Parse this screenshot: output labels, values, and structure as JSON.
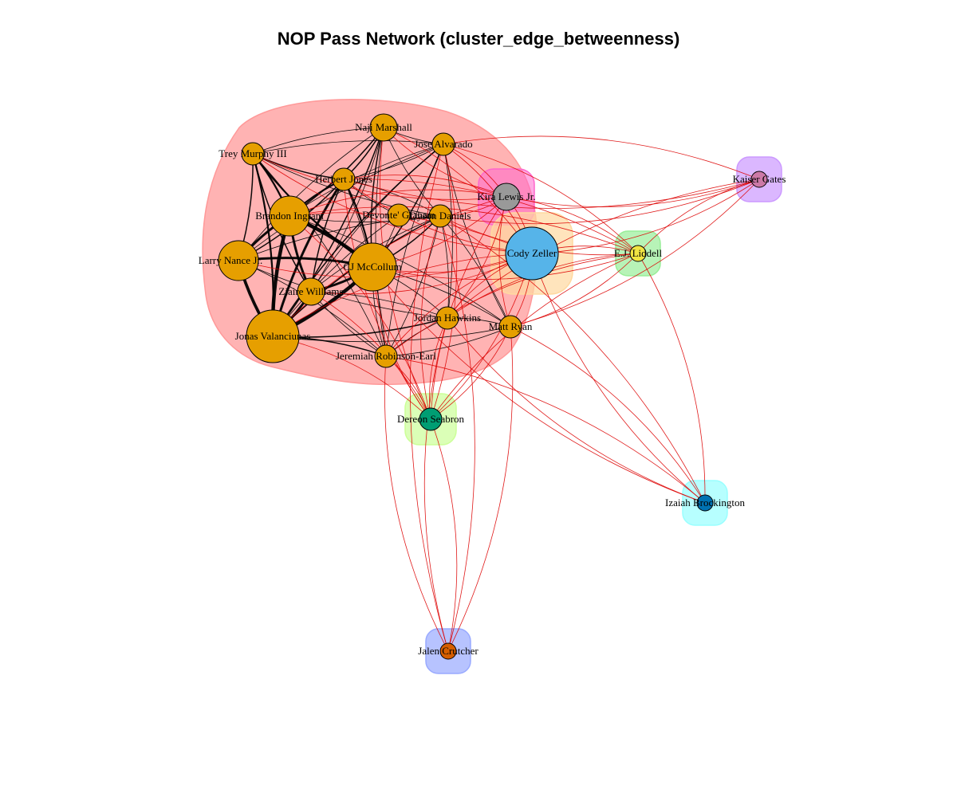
{
  "title": "NOP Pass Network (cluster_edge_betweenness)",
  "colors": {
    "edge_within": "#000000",
    "edge_between": "#dd0000",
    "node_border": "#000000"
  },
  "clusters": [
    {
      "id": "c1",
      "fill": "#ff9999",
      "opacity": 0.75,
      "members": [
        "Naji Marshall",
        "Jose Alvarado",
        "Trey Murphy III",
        "Herbert Jones",
        "Brandon Ingram",
        "Devonte' Graham",
        "Dyson Daniels",
        "Larry Nance Jr.",
        "CJ McCollum",
        "Ziaire Williams",
        "Jonas Valanciunas",
        "Jordan Hawkins",
        "Matt Ryan",
        "Jeremiah Robinson-Earl"
      ]
    },
    {
      "id": "c2",
      "fill": "#ff66cc",
      "opacity": 0.55,
      "members": [
        "Kira Lewis Jr."
      ]
    },
    {
      "id": "c3",
      "fill": "#ffd9a0",
      "opacity": 0.7,
      "members": [
        "Cody Zeller"
      ]
    },
    {
      "id": "c4",
      "fill": "#99ee99",
      "opacity": 0.7,
      "members": [
        "E.J. Liddell"
      ]
    },
    {
      "id": "c5",
      "fill": "#cc99ff",
      "opacity": 0.7,
      "members": [
        "Kaiser Gates"
      ]
    },
    {
      "id": "c6",
      "fill": "#ccff99",
      "opacity": 0.7,
      "members": [
        "Dereon Seabron"
      ]
    },
    {
      "id": "c7",
      "fill": "#99ffff",
      "opacity": 0.7,
      "members": [
        "Izaiah Brockington"
      ]
    },
    {
      "id": "c8",
      "fill": "#99aaff",
      "opacity": 0.7,
      "members": [
        "Jalen Crutcher"
      ]
    }
  ],
  "nodes": [
    {
      "label": "Naji Marshall",
      "color": "#e69f00",
      "size": 3,
      "cluster": "c1"
    },
    {
      "label": "Jose Alvarado",
      "color": "#e69f00",
      "size": 2,
      "cluster": "c1"
    },
    {
      "label": "Trey Murphy III",
      "color": "#e69f00",
      "size": 2,
      "cluster": "c1"
    },
    {
      "label": "Herbert Jones",
      "color": "#e69f00",
      "size": 2,
      "cluster": "c1"
    },
    {
      "label": "Brandon Ingram",
      "color": "#e69f00",
      "size": 5,
      "cluster": "c1"
    },
    {
      "label": "Devonte' Graham",
      "color": "#e69f00",
      "size": 2,
      "cluster": "c1"
    },
    {
      "label": "Dyson Daniels",
      "color": "#e69f00",
      "size": 2,
      "cluster": "c1"
    },
    {
      "label": "Larry Nance Jr.",
      "color": "#e69f00",
      "size": 5,
      "cluster": "c1"
    },
    {
      "label": "CJ McCollum",
      "color": "#e69f00",
      "size": 6,
      "cluster": "c1"
    },
    {
      "label": "Ziaire Williams",
      "color": "#e69f00",
      "size": 3,
      "cluster": "c1"
    },
    {
      "label": "Jonas Valanciunas",
      "color": "#e69f00",
      "size": 7,
      "cluster": "c1"
    },
    {
      "label": "Jordan Hawkins",
      "color": "#e69f00",
      "size": 2,
      "cluster": "c1"
    },
    {
      "label": "Matt Ryan",
      "color": "#e69f00",
      "size": 2,
      "cluster": "c1"
    },
    {
      "label": "Jeremiah Robinson-Earl",
      "color": "#e69f00",
      "size": 2,
      "cluster": "c1"
    },
    {
      "label": "Kira Lewis Jr.",
      "color": "#999999",
      "size": 3,
      "cluster": "c2"
    },
    {
      "label": "Cody Zeller",
      "color": "#56b4e9",
      "size": 7,
      "cluster": "c3"
    },
    {
      "label": "E.J. Liddell",
      "color": "#f0e442",
      "size": 1,
      "cluster": "c4"
    },
    {
      "label": "Kaiser Gates",
      "color": "#cc79a7",
      "size": 1,
      "cluster": "c5"
    },
    {
      "label": "Dereon Seabron",
      "color": "#009e73",
      "size": 2,
      "cluster": "c6"
    },
    {
      "label": "Izaiah Brockington",
      "color": "#0072b2",
      "size": 1,
      "cluster": "c7"
    },
    {
      "label": "Jalen Crutcher",
      "color": "#d55e00",
      "size": 1,
      "cluster": "c8"
    }
  ],
  "edges": [
    [
      "Brandon Ingram",
      "CJ McCollum",
      6
    ],
    [
      "Brandon Ingram",
      "Jonas Valanciunas",
      6
    ],
    [
      "CJ McCollum",
      "Jonas Valanciunas",
      6
    ],
    [
      "Larry Nance Jr.",
      "Jonas Valanciunas",
      5
    ],
    [
      "Ziaire Williams",
      "Jonas Valanciunas",
      4
    ],
    [
      "Brandon Ingram",
      "Larry Nance Jr.",
      4
    ],
    [
      "CJ McCollum",
      "Ziaire Williams",
      4
    ],
    [
      "Brandon Ingram",
      "Ziaire Williams",
      4
    ],
    [
      "Larry Nance Jr.",
      "CJ McCollum",
      4
    ],
    [
      "Herbert Jones",
      "Jonas Valanciunas",
      4
    ],
    [
      "Herbert Jones",
      "CJ McCollum",
      3
    ],
    [
      "Herbert Jones",
      "Brandon Ingram",
      3
    ],
    [
      "Trey Murphy III",
      "Brandon Ingram",
      3
    ],
    [
      "Trey Murphy III",
      "CJ McCollum",
      3
    ],
    [
      "Trey Murphy III",
      "Jonas Valanciunas",
      3
    ],
    [
      "Trey Murphy III",
      "Ziaire Williams",
      2
    ],
    [
      "Trey Murphy III",
      "Larry Nance Jr.",
      2
    ],
    [
      "Trey Murphy III",
      "Herbert Jones",
      2
    ],
    [
      "Naji Marshall",
      "Jonas Valanciunas",
      2
    ],
    [
      "Naji Marshall",
      "CJ McCollum",
      2
    ],
    [
      "Naji Marshall",
      "Brandon Ingram",
      2
    ],
    [
      "Naji Marshall",
      "Trey Murphy III",
      1
    ],
    [
      "Naji Marshall",
      "Herbert Jones",
      2
    ],
    [
      "Naji Marshall",
      "Larry Nance Jr.",
      1
    ],
    [
      "Jose Alvarado",
      "CJ McCollum",
      2
    ],
    [
      "Jose Alvarado",
      "Jonas Valanciunas",
      2
    ],
    [
      "Jose Alvarado",
      "Naji Marshall",
      1
    ],
    [
      "Jose Alvarado",
      "Brandon Ingram",
      1
    ],
    [
      "Jose Alvarado",
      "Jordan Hawkins",
      1
    ],
    [
      "Jose Alvarado",
      "Ziaire Williams",
      1
    ],
    [
      "Dyson Daniels",
      "CJ McCollum",
      2
    ],
    [
      "Dyson Daniels",
      "Jonas Valanciunas",
      2
    ],
    [
      "Dyson Daniels",
      "Brandon Ingram",
      1
    ],
    [
      "Dyson Daniels",
      "Larry Nance Jr.",
      1
    ],
    [
      "Dyson Daniels",
      "Jordan Hawkins",
      1
    ],
    [
      "Dyson Daniels",
      "Ziaire Williams",
      1
    ],
    [
      "Devonte' Graham",
      "CJ McCollum",
      1
    ],
    [
      "Devonte' Graham",
      "Jonas Valanciunas",
      1
    ],
    [
      "Devonte' Graham",
      "Herbert Jones",
      1
    ],
    [
      "Jordan Hawkins",
      "CJ McCollum",
      1
    ],
    [
      "Jordan Hawkins",
      "Jonas Valanciunas",
      2
    ],
    [
      "Jordan Hawkins",
      "Ziaire Williams",
      1
    ],
    [
      "Jordan Hawkins",
      "Matt Ryan",
      1
    ],
    [
      "Jordan Hawkins",
      "Jeremiah Robinson-Earl",
      1
    ],
    [
      "Jordan Hawkins",
      "Larry Nance Jr.",
      1
    ],
    [
      "Matt Ryan",
      "CJ McCollum",
      1
    ],
    [
      "Matt Ryan",
      "Jonas Valanciunas",
      1
    ],
    [
      "Matt Ryan",
      "Brandon Ingram",
      1
    ],
    [
      "Matt Ryan",
      "Jose Alvarado",
      1
    ],
    [
      "Matt Ryan",
      "Dyson Daniels",
      1
    ],
    [
      "Matt Ryan",
      "Jeremiah Robinson-Earl",
      1
    ],
    [
      "Jeremiah Robinson-Earl",
      "Jonas Valanciunas",
      2
    ],
    [
      "Jeremiah Robinson-Earl",
      "CJ McCollum",
      1
    ],
    [
      "Jeremiah Robinson-Earl",
      "Larry Nance Jr.",
      1
    ],
    [
      "Jeremiah Robinson-Earl",
      "Ziaire Williams",
      1
    ],
    [
      "Jeremiah Robinson-Earl",
      "Herbert Jones",
      1
    ],
    [
      "Jeremiah Robinson-Earl",
      "Naji Marshall",
      1
    ],
    [
      "Jeremiah Robinson-Earl",
      "Trey Murphy III",
      1
    ],
    [
      "Jeremiah Robinson-Earl",
      "Jose Alvarado",
      1
    ],
    [
      "Jeremiah Robinson-Earl",
      "Dyson Daniels",
      1
    ],
    [
      "Trey Murphy III",
      "Jose Alvarado",
      1
    ],
    [
      "Trey Murphy III",
      "Dyson Daniels",
      1
    ],
    [
      "Herbert Jones",
      "Dyson Daniels",
      1
    ],
    [
      "Herbert Jones",
      "Ziaire Williams",
      2
    ],
    [
      "Herbert Jones",
      "Larry Nance Jr.",
      2
    ],
    [
      "Naji Marshall",
      "Dyson Daniels",
      1
    ],
    [
      "Jose Alvarado",
      "Herbert Jones",
      1
    ],
    [
      "Jose Alvarado",
      "Larry Nance Jr.",
      1
    ],
    [
      "Naji Marshall",
      "Ziaire Williams",
      1
    ],
    [
      "Kira Lewis Jr.",
      "Brandon Ingram",
      1
    ],
    [
      "Kira Lewis Jr.",
      "CJ McCollum",
      1
    ],
    [
      "Kira Lewis Jr.",
      "Jonas Valanciunas",
      1
    ],
    [
      "Kira Lewis Jr.",
      "Trey Murphy III",
      1
    ],
    [
      "Kira Lewis Jr.",
      "Herbert Jones",
      1
    ],
    [
      "Kira Lewis Jr.",
      "Naji Marshall",
      1
    ],
    [
      "Kira Lewis Jr.",
      "Jose Alvarado",
      1
    ],
    [
      "Kira Lewis Jr.",
      "Jordan Hawkins",
      1
    ],
    [
      "Kira Lewis Jr.",
      "Matt Ryan",
      1
    ],
    [
      "Kira Lewis Jr.",
      "Dyson Daniels",
      1
    ],
    [
      "Kira Lewis Jr.",
      "Kaiser Gates",
      1
    ],
    [
      "Kira Lewis Jr.",
      "E.J. Liddell",
      1
    ],
    [
      "Kira Lewis Jr.",
      "Dereon Seabron",
      1
    ],
    [
      "Kira Lewis Jr.",
      "Cody Zeller",
      1
    ],
    [
      "Cody Zeller",
      "Brandon Ingram",
      1
    ],
    [
      "Cody Zeller",
      "CJ McCollum",
      1
    ],
    [
      "Cody Zeller",
      "Jonas Valanciunas",
      1
    ],
    [
      "Cody Zeller",
      "Herbert Jones",
      1
    ],
    [
      "Cody Zeller",
      "Naji Marshall",
      1
    ],
    [
      "Cody Zeller",
      "Trey Murphy III",
      1
    ],
    [
      "Cody Zeller",
      "Jose Alvarado",
      1
    ],
    [
      "Cody Zeller",
      "Larry Nance Jr.",
      1
    ],
    [
      "Cody Zeller",
      "Jordan Hawkins",
      1
    ],
    [
      "Cody Zeller",
      "Matt Ryan",
      1
    ],
    [
      "Cody Zeller",
      "Jeremiah Robinson-Earl",
      1
    ],
    [
      "Cody Zeller",
      "E.J. Liddell",
      1
    ],
    [
      "Cody Zeller",
      "Kaiser Gates",
      1
    ],
    [
      "Cody Zeller",
      "Dereon Seabron",
      1
    ],
    [
      "Cody Zeller",
      "Izaiah Brockington",
      1
    ],
    [
      "Cody Zeller",
      "Ziaire Williams",
      1
    ],
    [
      "E.J. Liddell",
      "Brandon Ingram",
      1
    ],
    [
      "E.J. Liddell",
      "CJ McCollum",
      1
    ],
    [
      "E.J. Liddell",
      "Jose Alvarado",
      1
    ],
    [
      "E.J. Liddell",
      "Dyson Daniels",
      1
    ],
    [
      "E.J. Liddell",
      "Jordan Hawkins",
      1
    ],
    [
      "E.J. Liddell",
      "Matt Ryan",
      1
    ],
    [
      "E.J. Liddell",
      "Herbert Jones",
      1
    ],
    [
      "E.J. Liddell",
      "Kaiser Gates",
      1
    ],
    [
      "E.J. Liddell",
      "Dereon Seabron",
      1
    ],
    [
      "E.J. Liddell",
      "Izaiah Brockington",
      1
    ],
    [
      "E.J. Liddell",
      "Jeremiah Robinson-Earl",
      1
    ],
    [
      "Kaiser Gates",
      "Dyson Daniels",
      1
    ],
    [
      "Kaiser Gates",
      "Jose Alvarado",
      1
    ],
    [
      "Kaiser Gates",
      "Matt Ryan",
      1
    ],
    [
      "Kaiser Gates",
      "Jordan Hawkins",
      1
    ],
    [
      "Kaiser Gates",
      "Herbert Jones",
      1
    ],
    [
      "Dereon Seabron",
      "Brandon Ingram",
      1
    ],
    [
      "Dereon Seabron",
      "CJ McCollum",
      1
    ],
    [
      "Dereon Seabron",
      "Jonas Valanciunas",
      1
    ],
    [
      "Dereon Seabron",
      "Naji Marshall",
      1
    ],
    [
      "Dereon Seabron",
      "Jose Alvarado",
      1
    ],
    [
      "Dereon Seabron",
      "Jordan Hawkins",
      1
    ],
    [
      "Dereon Seabron",
      "Matt Ryan",
      1
    ],
    [
      "Dereon Seabron",
      "Dyson Daniels",
      1
    ],
    [
      "Dereon Seabron",
      "Jeremiah Robinson-Earl",
      1
    ],
    [
      "Dereon Seabron",
      "Herbert Jones",
      1
    ],
    [
      "Dereon Seabron",
      "Ziaire Williams",
      1
    ],
    [
      "Dereon Seabron",
      "Jalen Crutcher",
      1
    ],
    [
      "Izaiah Brockington",
      "Matt Ryan",
      1
    ],
    [
      "Izaiah Brockington",
      "Jordan Hawkins",
      1
    ],
    [
      "Izaiah Brockington",
      "Jeremiah Robinson-Earl",
      1
    ],
    [
      "Izaiah Brockington",
      "CJ McCollum",
      1
    ],
    [
      "Izaiah Brockington",
      "Dyson Daniels",
      1
    ],
    [
      "Jalen Crutcher",
      "Jordan Hawkins",
      1
    ],
    [
      "Jalen Crutcher",
      "Matt Ryan",
      1
    ],
    [
      "Jalen Crutcher",
      "Jeremiah Robinson-Earl",
      1
    ],
    [
      "Jalen Crutcher",
      "Dyson Daniels",
      1
    ],
    [
      "Jalen Crutcher",
      "Jose Alvarado",
      1
    ]
  ]
}
